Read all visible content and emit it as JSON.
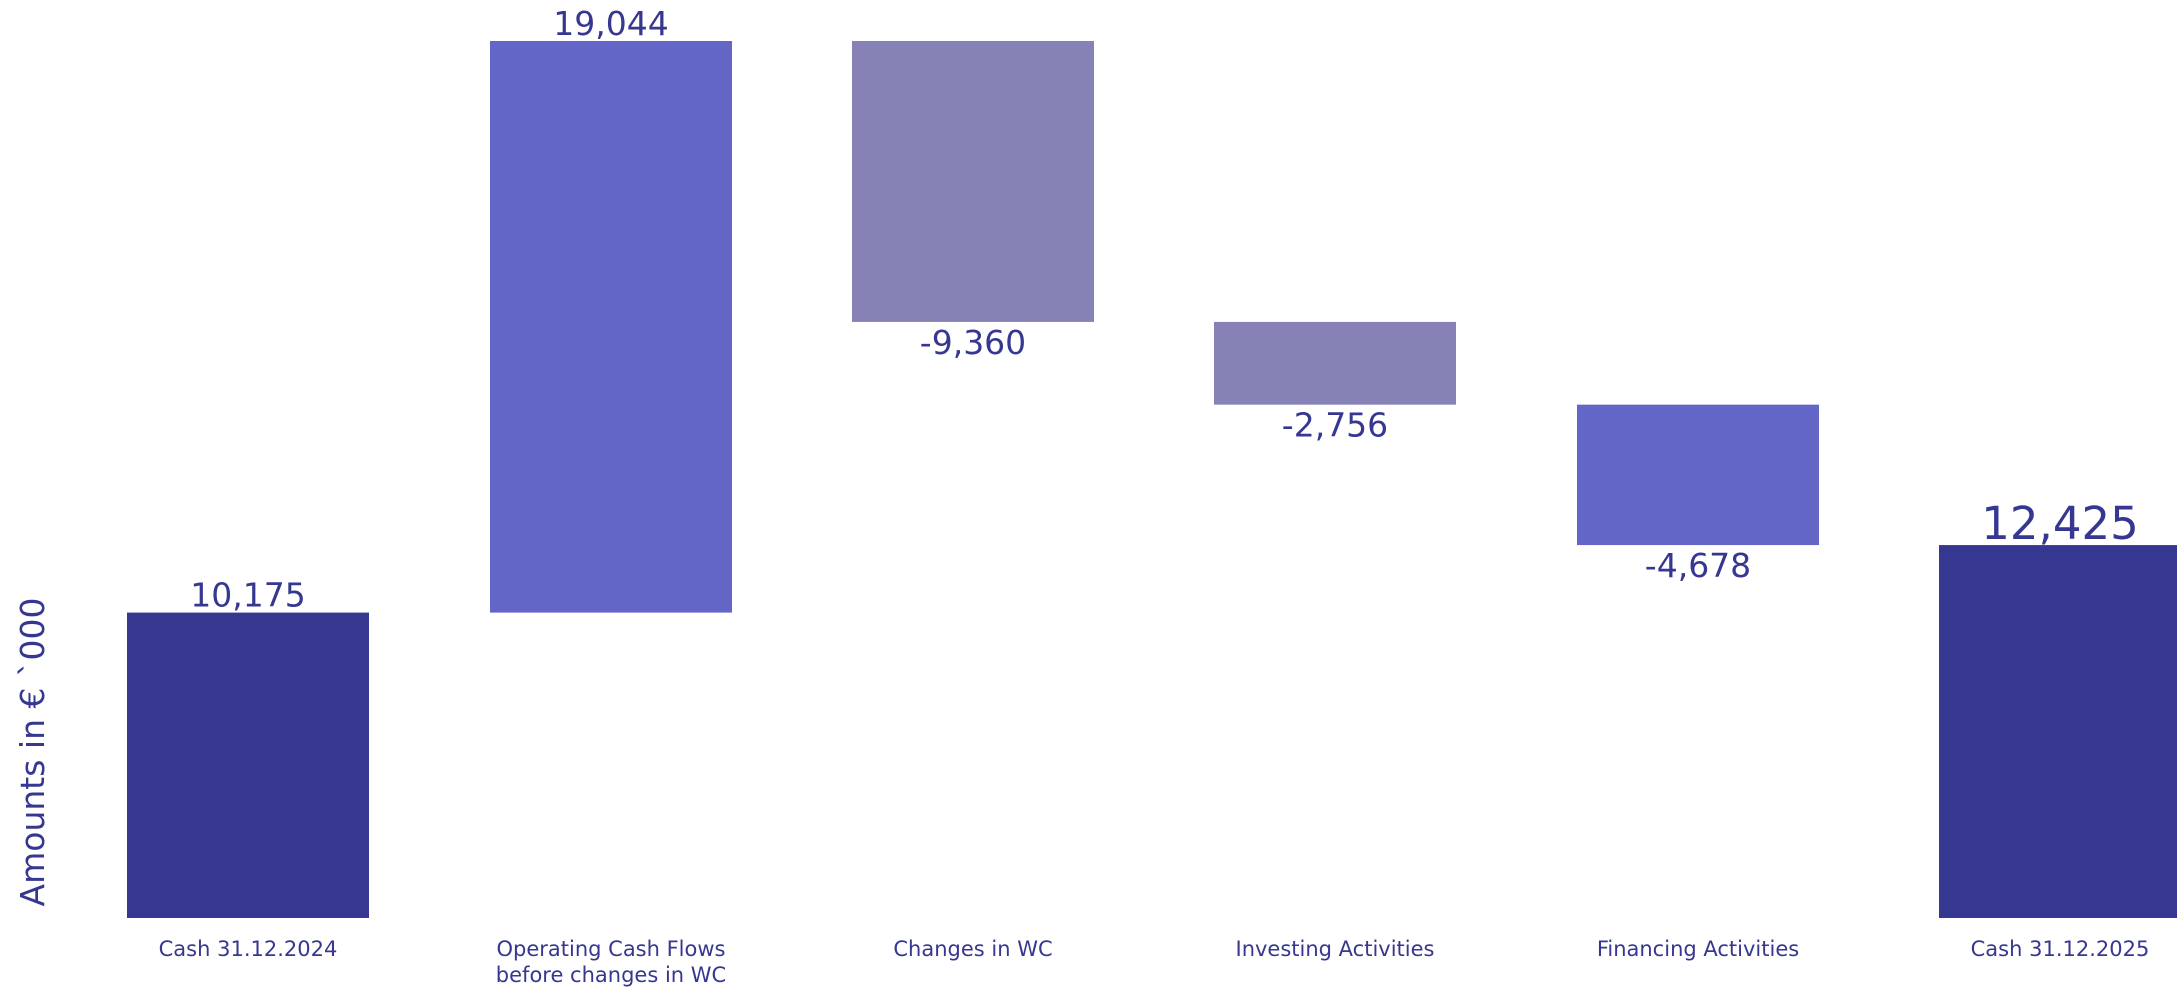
{
  "chart_data": {
    "type": "bar",
    "subtype": "waterfall",
    "ylabel": "Amounts in € `000",
    "categories": [
      [
        "Cash 31.12.2024"
      ],
      [
        "Operating Cash Flows",
        "before changes in WC"
      ],
      [
        "Changes in WC"
      ],
      [
        "Investing Activities"
      ],
      [
        "Financing Activities"
      ],
      [
        "Cash 31.12.2025"
      ]
    ],
    "values": [
      10175,
      19044,
      -9360,
      -2756,
      -4678,
      12425
    ],
    "value_labels": [
      "10,175",
      "19,044",
      "-9,360",
      "-2,756",
      "-4,678",
      "12,425"
    ],
    "bar_kind": [
      "total",
      "delta",
      "delta",
      "delta",
      "delta",
      "total"
    ],
    "colors": [
      "#363790",
      "#6366C7",
      "#8682B6",
      "#8682B6",
      "#6366C7",
      "#363790"
    ],
    "label_color": "#363790",
    "ylim": [
      0,
      30000
    ],
    "grid": false,
    "legend": "none"
  }
}
